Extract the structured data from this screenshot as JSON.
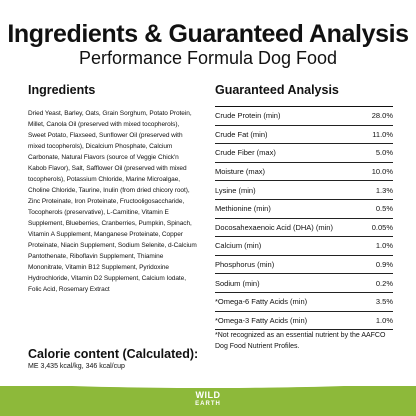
{
  "header": {
    "title": "Ingredients & Guaranteed Analysis",
    "subtitle": "Performance Formula Dog Food"
  },
  "ingredients": {
    "heading": "Ingredients",
    "text": "Dried Yeast, Barley, Oats, Grain Sorghum, Potato Protein, Millet, Canola Oil (preserved with mixed tocopherols), Sweet Potato, Flaxseed, Sunflower Oil (preserved with mixed tocopherols), Dicalcium Phosphate, Calcium Carbonate, Natural Flavors (source of Veggie Chick'n Kabob Flavor), Salt, Safflower Oil (preserved with mixed tocopherols), Potassium Chloride, Marine Microalgae, Choline Chloride, Taurine, Inulin (from dried chicory root), Zinc Proteinate, Iron Proteinate, Fructooligosaccharide, Tocopherols (preservative), L-Carnitine, Vitamin E Supplement, Blueberries, Cranberries, Pumpkin, Spinach, Vitamin A Supplement, Manganese Proteinate, Copper Proteinate, Niacin Supplement, Sodium Selenite, d-Calcium Pantothenate, Riboflavin Supplement, Thiamine Mononitrate, Vitamin B12 Supplement, Pyridoxine Hydrochloride, Vitamin D2 Supplement, Calcium Iodate, Folic Acid, Rosemary Extract"
  },
  "calorie": {
    "heading": "Calorie content (Calculated):",
    "value": "ME 3,435 kcal/kg, 346 kcal/cup"
  },
  "analysis": {
    "heading": "Guaranteed Analysis",
    "rows": [
      {
        "name": "Crude Protein (min)",
        "value": "28.0%"
      },
      {
        "name": "Crude Fat (min)",
        "value": "11.0%"
      },
      {
        "name": "Crude Fiber (max)",
        "value": "5.0%"
      },
      {
        "name": "Moisture (max)",
        "value": "10.0%"
      },
      {
        "name": "Lysine (min)",
        "value": "1.3%"
      },
      {
        "name": "Methionine (min)",
        "value": "0.5%"
      },
      {
        "name": "Docosahexaenoic Acid (DHA) (min)",
        "value": "0.05%"
      },
      {
        "name": "Calcium (min)",
        "value": "1.0%"
      },
      {
        "name": "Phosphorus (min)",
        "value": "0.9%"
      },
      {
        "name": "Sodium (min)",
        "value": "0.2%"
      },
      {
        "name": "*Omega-6 Fatty Acids (min)",
        "value": "3.5%"
      },
      {
        "name": "*Omega-3 Fatty Acids (min)",
        "value": "1.0%"
      }
    ],
    "footnote": "*Not recognized as an essential nutrient by the AAFCO Dog Food Nutrient Profiles."
  },
  "brand": {
    "logo_top": "WILD",
    "logo_bottom": "EARTH",
    "band_color": "#8db93a"
  }
}
